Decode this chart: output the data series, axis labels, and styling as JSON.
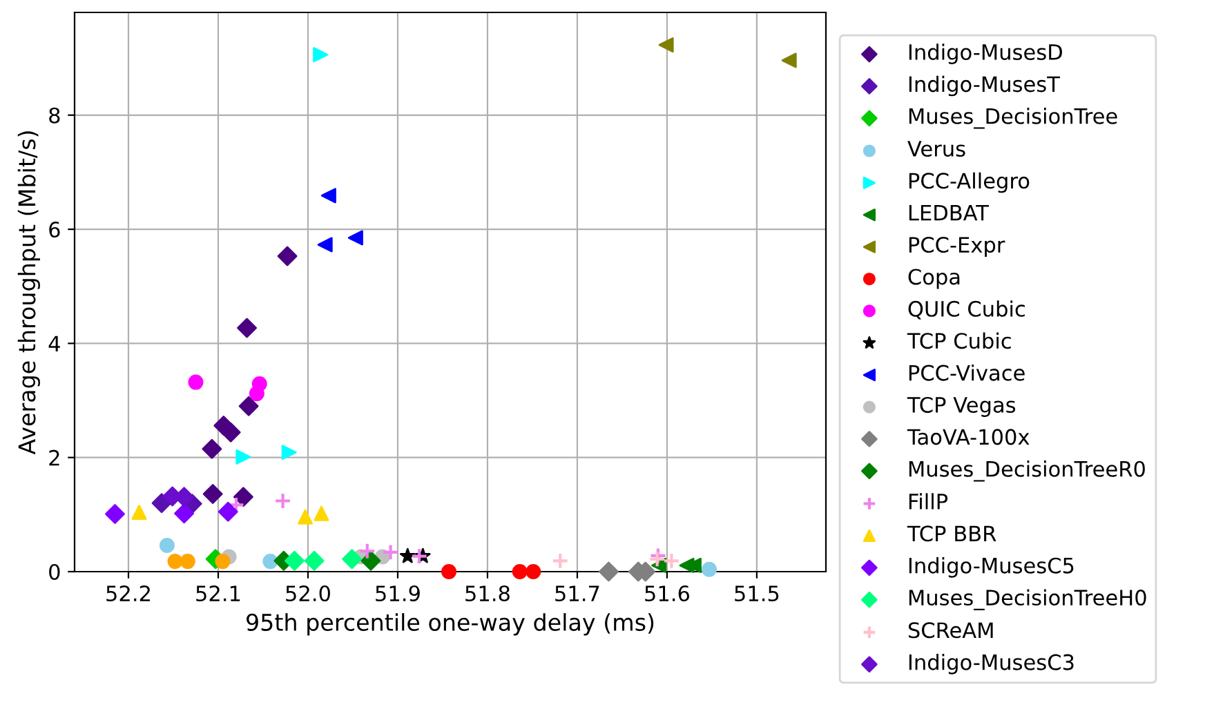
{
  "chart_data": {
    "type": "scatter",
    "xlabel": "95th percentile one-way delay (ms)",
    "ylabel": "Average throughput (Mbit/s)",
    "xlim": [
      52.26,
      51.423
    ],
    "ylim": [
      0,
      9.8
    ],
    "xticks": [
      52.2,
      52.1,
      {
        "value": 52.0,
        "label": "52.0"
      },
      51.9,
      51.8,
      51.7,
      51.6,
      51.5
    ],
    "yticks": [
      0,
      2,
      4,
      6,
      8
    ],
    "grid": true,
    "legend": "right",
    "series": [
      {
        "name": "Indigo-MusesD",
        "color": "#4b0082",
        "marker": "diamond",
        "x": [
          52.023,
          52.068,
          52.066,
          52.094,
          52.086,
          52.107,
          52.072,
          52.106
        ],
        "values": [
          5.53,
          4.27,
          2.9,
          2.56,
          2.44,
          2.15,
          1.31,
          1.36
        ]
      },
      {
        "name": "Indigo-MusesT",
        "color": "#5a10b0",
        "marker": "diamond",
        "x": [
          52.163,
          52.129
        ],
        "values": [
          1.2,
          1.19
        ]
      },
      {
        "name": "Muses_DecisionTree",
        "color": "#00cc00",
        "marker": "diamond",
        "x": [
          52.103
        ],
        "values": [
          0.22
        ]
      },
      {
        "name": "Verus",
        "color": "#87ceeb",
        "marker": "circle",
        "x": [
          52.157,
          52.042,
          51.553
        ],
        "values": [
          0.46,
          0.18,
          0.04
        ]
      },
      {
        "name": "PCC-Allegro",
        "color": "#00ffff",
        "marker": "triangle-right",
        "x": [
          51.986,
          52.072,
          52.021
        ],
        "values": [
          9.06,
          2.01,
          2.09
        ]
      },
      {
        "name": "LEDBAT",
        "color": "#008000",
        "marker": "triangle-left",
        "x": [
          51.609,
          51.578,
          51.57
        ],
        "values": [
          0.11,
          0.11,
          0.11
        ]
      },
      {
        "name": "PCC-Expr",
        "color": "#808000",
        "marker": "triangle-left",
        "x": [
          51.601,
          51.464
        ],
        "values": [
          9.23,
          8.96
        ]
      },
      {
        "name": "Copa",
        "color": "#ff0000",
        "marker": "circle",
        "x": [
          51.843,
          51.764,
          51.749
        ],
        "values": [
          0.0,
          0.0,
          0.0
        ]
      },
      {
        "name": "QUIC Cubic",
        "color": "#ff00ff",
        "marker": "circle",
        "x": [
          52.125,
          52.054,
          52.057
        ],
        "values": [
          3.32,
          3.29,
          3.12
        ]
      },
      {
        "name": "TCP Cubic",
        "color": "#000000",
        "marker": "star",
        "x": [
          51.889,
          51.872
        ],
        "values": [
          0.27,
          0.27
        ]
      },
      {
        "name": "PCC-Vivace",
        "color": "#0000ff",
        "marker": "triangle-left",
        "x": [
          51.977,
          51.981,
          51.947
        ],
        "values": [
          6.59,
          5.73,
          5.85
        ]
      },
      {
        "name": "TCP Vegas",
        "color": "#c0c0c0",
        "marker": "circle",
        "x": [
          52.088,
          51.941,
          51.917
        ],
        "values": [
          0.26,
          0.26,
          0.26
        ]
      },
      {
        "name": "TaoVA-100x",
        "color": "#808080",
        "marker": "diamond",
        "x": [
          51.665,
          51.632,
          51.624
        ],
        "values": [
          0.0,
          0.0,
          0.0
        ]
      },
      {
        "name": "Muses_DecisionTreeR0",
        "color": "#008000",
        "marker": "diamond",
        "x": [
          52.027,
          51.93
        ],
        "values": [
          0.19,
          0.19
        ]
      },
      {
        "name": "FillP",
        "color": "#ee82ee",
        "marker": "cross",
        "x": [
          52.028,
          52.08,
          51.908,
          51.934,
          51.876,
          51.61
        ],
        "values": [
          1.24,
          1.17,
          0.34,
          0.36,
          0.27,
          0.28
        ]
      },
      {
        "name": "TCP BBR",
        "color": "#ffd700",
        "marker": "triangle",
        "x": [
          52.188,
          52.003,
          51.985
        ],
        "values": [
          1.04,
          0.96,
          1.02
        ]
      },
      {
        "name": "Indigo-MusesC5",
        "color": "#7f00ff",
        "marker": "diamond",
        "x": [
          52.215,
          52.138,
          52.089
        ],
        "values": [
          1.01,
          1.02,
          1.05
        ]
      },
      {
        "name": "Muses_DecisionTreeH0",
        "color": "#00ff7f",
        "marker": "diamond",
        "x": [
          52.015,
          51.993,
          51.951
        ],
        "values": [
          0.19,
          0.19,
          0.22
        ]
      },
      {
        "name": "SCReAM",
        "color": "#ffc0cb",
        "marker": "cross",
        "x": [
          51.719,
          51.595,
          51.611
        ],
        "values": [
          0.19,
          0.19,
          0.22
        ]
      },
      {
        "name": "Indigo-MusesC3",
        "color": "#6a0dcc",
        "marker": "diamond",
        "x": [
          52.151,
          52.138
        ],
        "values": [
          1.32,
          1.31
        ]
      },
      {
        "color": "#ffa500",
        "marker": "circle",
        "x": [
          52.148,
          52.134,
          52.095
        ],
        "values": [
          0.18,
          0.18,
          0.18
        ]
      }
    ]
  }
}
